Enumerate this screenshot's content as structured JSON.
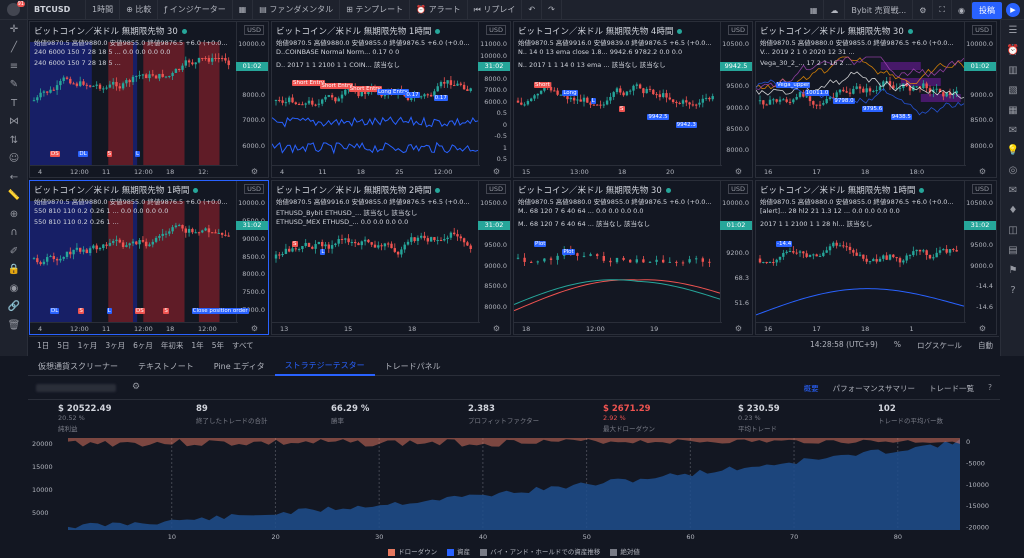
{
  "topbar": {
    "symbol": "BTCUSD",
    "interval": "1時間",
    "compare": "比較",
    "indicators": "インジケーター",
    "fundamentals": "ファンダメンタル",
    "template": "テンプレート",
    "alert": "アラート",
    "replay": "リプレイ",
    "broker": "Bybit 売買戦...",
    "post": "投稿",
    "notif_count": "91"
  },
  "panels": [
    {
      "title": "ビットコイン／米ドル 無期限先物 30",
      "ohlc": "始値9870.5 高値9880.0 安値9855.0 終値9876.5 +6.0 (+0.0...",
      "ind": [
        "240 6000 150 7 28 18 5 ...  0.0 0.0 0.0 0.0",
        "240 6000 150 7 28 18 5 ..."
      ],
      "axis": [
        "10000.0",
        "9000.0",
        "8000.0",
        "7000.0",
        "6000.0"
      ],
      "price": "01:02",
      "xt": [
        "4",
        "12:00",
        "11",
        "12:00",
        "18",
        "12:"
      ],
      "labels": [
        "DS",
        "DL",
        "S",
        "L"
      ]
    },
    {
      "title": "ビットコイン／米ドル 無期限先物 1時間",
      "ohlc": "始値9870.5 高値9880.0 安値9855.0 終値9876.5 +6.0 (+0.0...",
      "ind": [
        "D..COINBASE Normal Norm...  0.17 0  0",
        "D.. 2017 1 1 2100 1 1 COIN...  該当なし"
      ],
      "axis": [
        "11000.0",
        "10000.0",
        "9000.0",
        "8000.0",
        "7000.0",
        "6000.0",
        "0.5",
        "0",
        "-0.5",
        "1",
        "0.5"
      ],
      "price": "31:02",
      "xt": [
        "4",
        "11",
        "18",
        "25",
        "12:00"
      ],
      "labels": [
        "Short Entry",
        "Short Entry",
        "Short Entry",
        "Long Entry",
        "0.17",
        "0.17"
      ]
    },
    {
      "title": "ビットコイン／米ドル 無期限先物 4時間",
      "ohlc": "始値9870.5 高値9916.0 安値9839.0 終値9876.5 +6.5 (+0.0...",
      "ind": [
        "N.. 14 0 13 ema close 1.8...  9942.6 9782.2 0.0 0.0",
        "N.. 2017 1 1 14 0 13 ema ...  該当なし 該当なし"
      ],
      "axis": [
        "10500.0",
        "10000.0",
        "9500.0",
        "9000.0",
        "8500.0",
        "8000.0"
      ],
      "price": "9942.5",
      "xt": [
        "15",
        "13:00",
        "18",
        "20"
      ],
      "labels": [
        "Short",
        "Long",
        "L",
        "S",
        "9942.5",
        "9942.3",
        "02:31.02",
        "9782.0",
        "9782.0"
      ]
    },
    {
      "title": "ビットコイン／米ドル 無期限先物 30",
      "ohlc": "始値9870.5 高値9880.0 安値9855.0 終値9876.5 +6.0 (+0.0...",
      "ind": [
        "V... 2019 2 1 0 2020 12 31 ...",
        "Vega_30_2_... 17 2 1 16 2 ..."
      ],
      "axis": [
        "10000.0",
        "9500.0",
        "9000.0",
        "8500.0",
        "8000.0"
      ],
      "price": "01:02",
      "xt": [
        "16",
        "17",
        "18",
        "18:0"
      ],
      "labels": [
        "Vega_upper",
        "10011.0",
        "9798.0",
        "9795.6",
        "9438.5"
      ]
    },
    {
      "title": "ビットコイン／米ドル 無期限先物 1時間",
      "ohlc": "始値9870.5 高値9880.0 安値9855.0 終値9876.5 +6.0 (+0.0...",
      "ind": [
        "550 810 110 0.2 0.26 1 ...  0.0 0.0 0.0 0.0",
        "550 810 110 0.2 0.26 1 ..."
      ],
      "axis": [
        "10000.0",
        "9500.0",
        "9000.0",
        "8500.0",
        "8000.0",
        "7500.0",
        "7000.0"
      ],
      "price": "31:02",
      "xt": [
        "4",
        "12:00",
        "11",
        "12:00",
        "18",
        "12:00"
      ],
      "labels": [
        "DL",
        "S",
        "L",
        "DS",
        "S",
        "Close position order"
      ]
    },
    {
      "title": "ビットコイン／米ドル 無期限先物 2時間",
      "ohlc": "始値9870.5 高値9916.0 安値9855.0 終値9876.5 +6.5 (+0.0...",
      "ind": [
        "ETHUSD_Bybit ETHUSD_...  該当なし 該当なし",
        "ETHUSD_MEX ETHUSD_...  0.0 0.0 0.0 0.0"
      ],
      "axis": [
        "10500.0",
        "10000.0",
        "9500.0",
        "9000.0",
        "8500.0",
        "8000.0"
      ],
      "price": "31:02",
      "xt": [
        "13",
        "15",
        "18"
      ],
      "labels": [
        "S",
        "L"
      ]
    },
    {
      "title": "ビットコイン／米ドル 無期限先物 30",
      "ohlc": "始値9870.5 高値9880.0 安値9855.0 終値9876.5 +6.0 (+0.0...",
      "ind": [
        "M.. 68 120 7 6 40 64 ...  0.0 0.0 0.0 0.0",
        "M.. 68 120 7 6 40 64 ...  該当なし 該当なし"
      ],
      "axis": [
        "10000.0",
        "9600.0",
        "9200.0",
        "68.3",
        "51.6"
      ],
      "price": "01:02",
      "xt": [
        "18",
        "12:00",
        "19"
      ],
      "labels": [
        "Plot",
        "Plot"
      ]
    },
    {
      "title": "ビットコイン／米ドル 無期限先物 1時間",
      "ohlc": "始値9870.5 高値9880.0 安値9855.0 終値9876.5 +6.0 (+0.0...",
      "ind": [
        "[alert]... 28 hl2 21 1.3 12 ...  0.0 0.0 0.0 0.0",
        "2017 1 1 2100 1 1 28 hl...  該当なし"
      ],
      "axis": [
        "10500.0",
        "10000.0",
        "9500.0",
        "9000.0",
        "-14.4",
        "-14.6"
      ],
      "price": "31:02",
      "xt": [
        "16",
        "17",
        "18",
        "1"
      ],
      "labels": [
        "-14.4"
      ]
    }
  ],
  "timeframe": {
    "ranges": [
      "1日",
      "5日",
      "1ヶ月",
      "3ヶ月",
      "6ヶ月",
      "年初来",
      "1年",
      "5年",
      "すべて"
    ],
    "clock": "14:28:58 (UTC+9)",
    "percent": "%",
    "log": "ログスケール",
    "auto": "自動"
  },
  "bottom_tabs": [
    "仮想通貨スクリーナー",
    "テキストノート",
    "Pine エディタ",
    "ストラテジーテスター",
    "トレードパネル"
  ],
  "strategy": {
    "subtabs": [
      "概要",
      "パフォーマンスサマリー",
      "トレード一覧"
    ],
    "stats": [
      {
        "value": "$ 20522.49",
        "sub": "20.52 %",
        "label": "純利益",
        "neg": false
      },
      {
        "value": "89",
        "sub": "",
        "label": "終了したトレードの合計",
        "neg": false
      },
      {
        "value": "66.29 %",
        "sub": "",
        "label": "勝率",
        "neg": false
      },
      {
        "value": "2.383",
        "sub": "",
        "label": "プロフィットファクター",
        "neg": false
      },
      {
        "value": "$ 2671.29",
        "sub": "2.92 %",
        "label": "最大ドローダウン",
        "neg": true
      },
      {
        "value": "$ 230.59",
        "sub": "0.23 %",
        "label": "平均トレード",
        "neg": false
      },
      {
        "value": "102",
        "sub": "",
        "label": "トレードの平均バー数",
        "neg": false
      }
    ],
    "equity_left_axis": [
      "20000",
      "15000",
      "10000",
      "5000"
    ],
    "equity_right_axis": [
      "0",
      "-5000",
      "-10000",
      "-15000",
      "-20000"
    ],
    "equity_x": [
      "10",
      "20",
      "30",
      "40",
      "50",
      "60",
      "70",
      "80"
    ],
    "legend": [
      {
        "label": "ドローダウン",
        "color": "#e5785f"
      },
      {
        "label": "資産",
        "color": "#2962ff"
      },
      {
        "label": "バイ・アンド・ホールドでの資産推移",
        "color": "#787b86"
      },
      {
        "label": "絶対値",
        "color": "#787b86"
      }
    ]
  }
}
